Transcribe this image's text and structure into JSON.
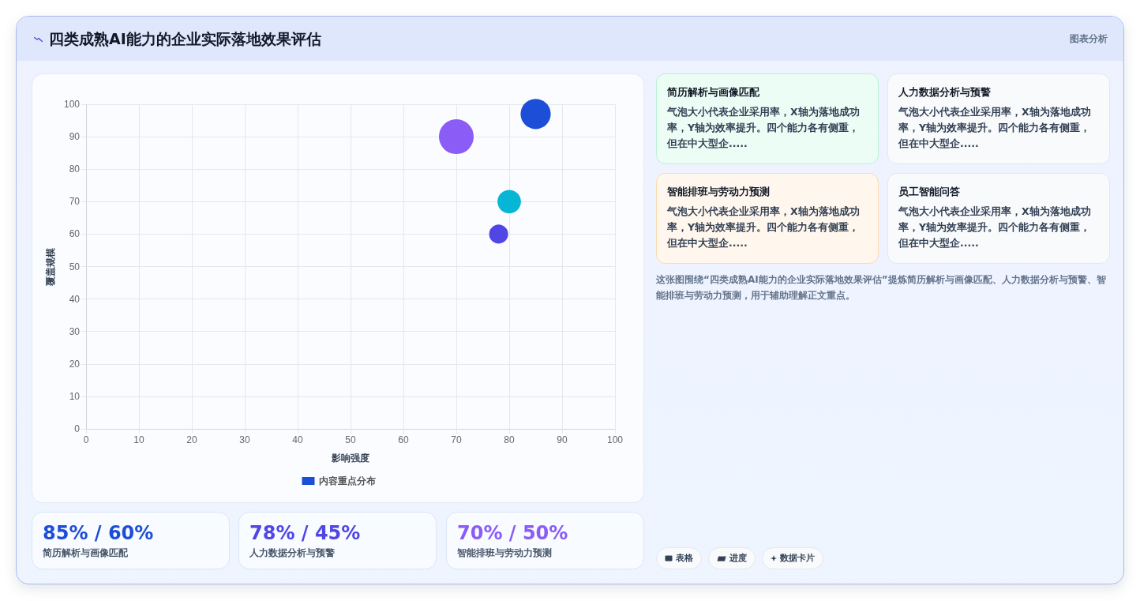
{
  "chart_data": {
    "type": "bubble",
    "title": "四类成熟AI能力的企业实际落地效果评估",
    "xlabel": "影响强度",
    "ylabel": "覆盖规模",
    "series": [
      {
        "name": "内容重点分布",
        "color": "#1d4ed8",
        "colors": [
          "#1d4ed8",
          "#4f46e5",
          "#8b5cf6",
          "#06b6d4"
        ],
        "x": [
          85,
          78,
          70,
          80
        ],
        "values": [
          97,
          60,
          90,
          70
        ],
        "sizes": [
          0.75,
          0.3,
          1,
          0.46
        ]
      }
    ],
    "xlim": [
      0,
      100
    ],
    "ylim": [
      0,
      100
    ],
    "xticks": [
      0,
      10,
      20,
      30,
      40,
      50,
      60,
      70,
      80,
      90,
      100
    ],
    "yticks": [
      0,
      10,
      20,
      30,
      40,
      50,
      60,
      70,
      80,
      90,
      100
    ],
    "grid": true,
    "legend": "bottom",
    "marker": "circle",
    "annotations": [
      "图表分析",
      "简历解析与画像匹配",
      "气泡大小代表企业采用率，X轴为落地成功率，Y轴为效率提升。四个能力各有侧重，但在中大型企.....",
      "人力数据分析与预警",
      "气泡大小代表企业采用率，X轴为落地成功率，Y轴为效率提升。四个能力各有侧重，但在中大型企.....",
      "智能排班与劳动力预测",
      "气泡大小代表企业采用率，X轴为落地成功率，Y轴为效率提升。四个能力各有侧重，但在中大型企.....",
      "员工智能问答",
      "气泡大小代表企业采用率，X轴为落地成功率，Y轴为效率提升。四个能力各有侧重，但在中大型企.....",
      "这张图围绕“四类成熟AI能力的企业实际落地效果评估”提炼简历解析与画像匹配、人力数据分析与预警、智能排班与劳动力预测，用于辅助理解正文重点。",
      "85% / 60%",
      "简历解析与画像匹配",
      "78% / 45%",
      "人力数据分析与预警",
      "70% / 50%",
      "智能排班与劳动力预测",
      "表格",
      "进度",
      "数据卡片"
    ]
  }
}
